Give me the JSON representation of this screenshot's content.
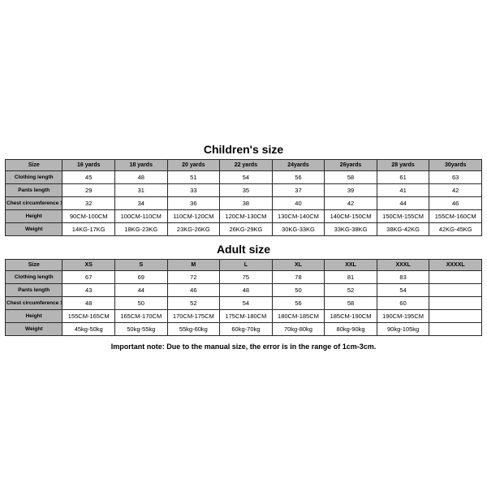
{
  "children": {
    "title": "Children's size",
    "headers": [
      "Size",
      "16 yards",
      "18 yards",
      "20 yards",
      "22 yards",
      "24yards",
      "26yards",
      "28 yards",
      "30yards"
    ],
    "rows": [
      {
        "label": "Clothing length",
        "cells": [
          "45",
          "48",
          "51",
          "54",
          "56",
          "58",
          "61",
          "63"
        ]
      },
      {
        "label": "Pants length",
        "cells": [
          "29",
          "31",
          "33",
          "35",
          "37",
          "39",
          "41",
          "42"
        ]
      },
      {
        "label": "Chest circumference 1/2",
        "cells": [
          "32",
          "34",
          "36",
          "38",
          "40",
          "42",
          "44",
          "46"
        ]
      },
      {
        "label": "Height",
        "cells": [
          "90CM-100CM",
          "100CM-110CM",
          "110CM-120CM",
          "120CM-130CM",
          "130CM-140CM",
          "140CM-150CM",
          "150CM-155CM",
          "155CM-160CM"
        ]
      },
      {
        "label": "Weight",
        "cells": [
          "14KG-17KG",
          "18KG-23KG",
          "23KG-26KG",
          "26KG-29KG",
          "30KG-33KG",
          "33KG-38KG",
          "38KG-42KG",
          "42KG-45KG"
        ]
      }
    ]
  },
  "adult": {
    "title": "Adult size",
    "headers": [
      "Size",
      "XS",
      "S",
      "M",
      "L",
      "XL",
      "XXL",
      "XXXL",
      "XXXXL"
    ],
    "rows": [
      {
        "label": "Clothing length",
        "cells": [
          "67",
          "69",
          "72",
          "75",
          "78",
          "81",
          "83",
          ""
        ]
      },
      {
        "label": "Pants length",
        "cells": [
          "43",
          "44",
          "46",
          "48",
          "50",
          "52",
          "54",
          ""
        ]
      },
      {
        "label": "Chest circumference 1/2",
        "cells": [
          "48",
          "50",
          "52",
          "54",
          "56",
          "58",
          "60",
          ""
        ]
      },
      {
        "label": "Height",
        "cells": [
          "155CM-165CM",
          "165CM-170CM",
          "170CM-175CM",
          "175CM-180CM",
          "180CM-185CM",
          "185CM-190CM",
          "190CM-195CM",
          ""
        ]
      },
      {
        "label": "Weight",
        "cells": [
          "45kg-50kg",
          "50kg-55kg",
          "55kg-60kg",
          "60kg-70kg",
          "70kg-80kg",
          "80kg-90kg",
          "90kg-105kg",
          ""
        ]
      }
    ]
  },
  "note": "Important note: Due to the manual size, the error is in the range of 1cm-3cm.",
  "colors": {
    "header_bg": "#b5b5b5",
    "border": "#2a2a2a",
    "page_bg": "#ffffff",
    "text": "#000000"
  }
}
